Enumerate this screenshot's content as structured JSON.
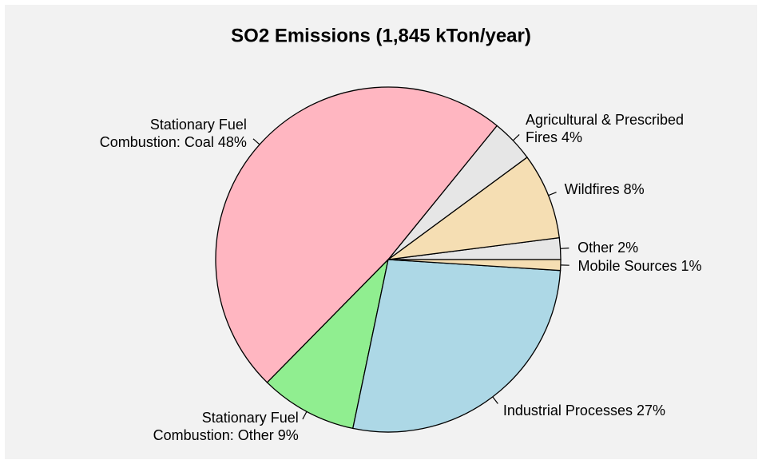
{
  "chart_data": {
    "type": "pie",
    "title": "SO2 Emissions (1,845 kTon/year)",
    "categories": [
      "Other",
      "Wildfires",
      "Agricultural & Prescribed Fires",
      "Stationary Fuel Combustion: Coal",
      "Stationary Fuel Combustion: Other",
      "Industrial Processes",
      "Mobile Sources"
    ],
    "values": [
      2,
      8,
      4,
      48,
      9,
      27,
      1
    ],
    "value_labels": [
      "2%",
      "8%",
      "4%",
      "48%",
      "9%",
      "27%",
      "1%"
    ],
    "colors": [
      "#e6e6e6",
      "#f5deb3",
      "#e6e6e6",
      "#ffb6c1",
      "#90ee90",
      "#add8e6",
      "#f5deb3"
    ]
  }
}
